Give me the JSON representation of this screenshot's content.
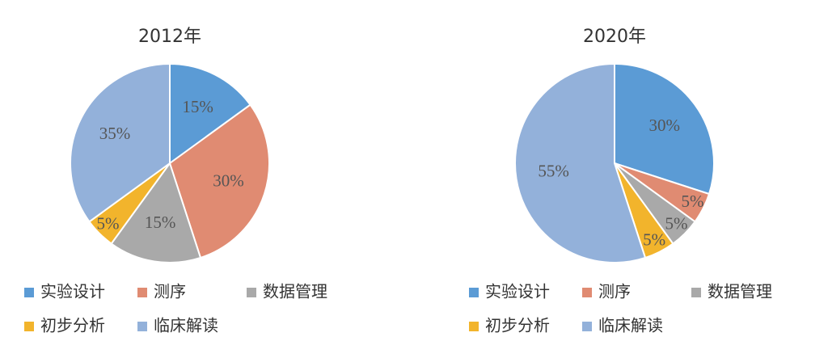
{
  "chart_data": [
    {
      "type": "pie",
      "title": "2012年",
      "categories": [
        "实验设计",
        "测序",
        "数据管理",
        "初步分析",
        "临床解读"
      ],
      "values": [
        15,
        30,
        15,
        5,
        35
      ],
      "value_labels": [
        "15%",
        "30%",
        "15%",
        "5%",
        "35%"
      ],
      "colors": [
        "#5b9bd5",
        "#e08b72",
        "#a9a9a9",
        "#f2b42c",
        "#93b1da"
      ]
    },
    {
      "type": "pie",
      "title": "2020年",
      "categories": [
        "实验设计",
        "测序",
        "数据管理",
        "初步分析",
        "临床解读"
      ],
      "values": [
        30,
        5,
        5,
        5,
        55
      ],
      "value_labels": [
        "30%",
        "5%",
        "5%",
        "5%",
        "55%"
      ],
      "colors": [
        "#5b9bd5",
        "#e08b72",
        "#a9a9a9",
        "#f2b42c",
        "#93b1da"
      ]
    }
  ]
}
